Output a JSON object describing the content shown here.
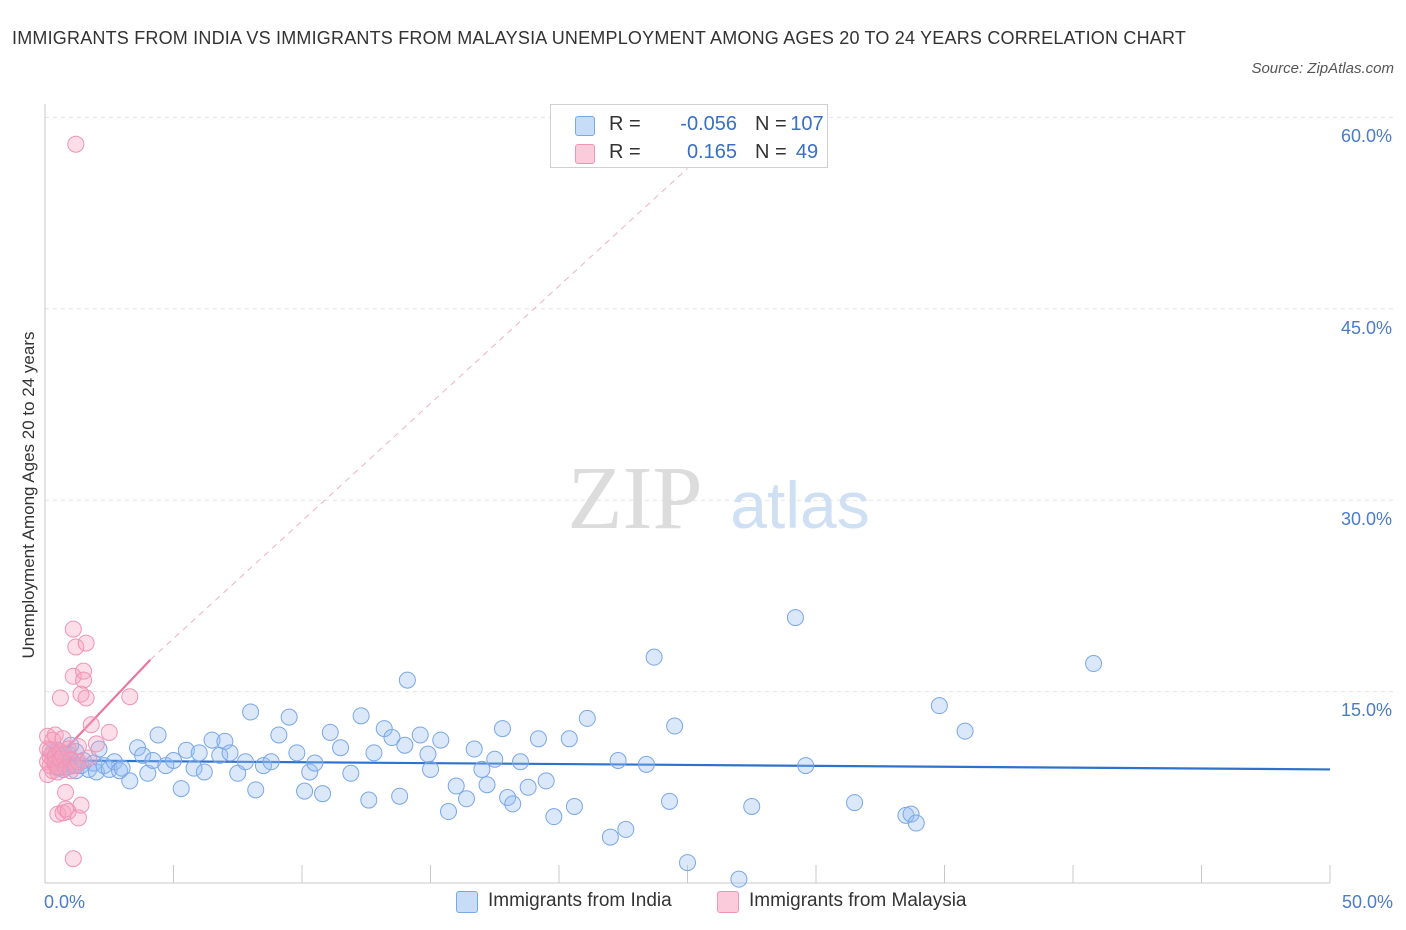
{
  "chart_data": {
    "type": "scatter",
    "title": "IMMIGRANTS FROM INDIA VS IMMIGRANTS FROM MALAYSIA UNEMPLOYMENT AMONG AGES 20 TO 24 YEARS CORRELATION CHART",
    "source": "Source: ZipAtlas.com",
    "ylabel": "Unemployment Among Ages 20 to 24 years",
    "xlabel": "",
    "xlim": [
      0,
      50
    ],
    "ylim": [
      0,
      60
    ],
    "x_tick_labels": [
      "0.0%",
      "50.0%"
    ],
    "y_tick_labels": [
      "15.0%",
      "30.0%",
      "45.0%",
      "60.0%"
    ],
    "y_ticks": [
      15,
      30,
      45,
      60
    ],
    "watermark": {
      "zip": "ZIP",
      "atlas": "atlas"
    },
    "legend": {
      "r_label": "R =",
      "n_label": "N =",
      "rows": [
        {
          "r": "-0.056",
          "n": "107"
        },
        {
          "r": "0.165",
          "n": "49"
        }
      ]
    },
    "series": [
      {
        "name": "Immigrants from India",
        "color": "#7aa7e8",
        "fill": "rgba(150,190,240,0.35)",
        "line_color": "#2f72cc",
        "trend": {
          "x0": 0.3,
          "y0": 9.6,
          "x1": 50,
          "y1": 8.9
        },
        "points": [
          [
            0.3,
            10.2
          ],
          [
            0.4,
            9.8
          ],
          [
            0.5,
            10.4
          ],
          [
            0.6,
            9.5
          ],
          [
            0.7,
            10.0
          ],
          [
            0.8,
            9.3
          ],
          [
            0.9,
            10.1
          ],
          [
            1.0,
            9.7
          ],
          [
            1.1,
            9.2
          ],
          [
            1.2,
            10.3
          ],
          [
            0.5,
            9.0
          ],
          [
            0.7,
            8.9
          ],
          [
            0.9,
            9.1
          ],
          [
            1.0,
            10.8
          ],
          [
            1.2,
            8.8
          ],
          [
            1.4,
            9.2
          ],
          [
            1.5,
            9.6
          ],
          [
            1.7,
            8.9
          ],
          [
            1.9,
            9.4
          ],
          [
            2.0,
            8.7
          ],
          [
            2.1,
            10.5
          ],
          [
            2.3,
            9.2
          ],
          [
            2.5,
            8.9
          ],
          [
            2.7,
            9.5
          ],
          [
            2.9,
            8.8
          ],
          [
            3.0,
            9.0
          ],
          [
            3.3,
            8.0
          ],
          [
            3.6,
            10.6
          ],
          [
            3.8,
            10.0
          ],
          [
            4.0,
            8.6
          ],
          [
            4.2,
            9.6
          ],
          [
            4.4,
            11.6
          ],
          [
            4.7,
            9.2
          ],
          [
            5.0,
            9.6
          ],
          [
            5.3,
            7.4
          ],
          [
            5.5,
            10.4
          ],
          [
            5.8,
            9.0
          ],
          [
            6.0,
            10.2
          ],
          [
            6.2,
            8.7
          ],
          [
            6.5,
            11.2
          ],
          [
            6.8,
            10.0
          ],
          [
            7.0,
            11.1
          ],
          [
            7.2,
            10.2
          ],
          [
            7.5,
            8.6
          ],
          [
            7.8,
            9.5
          ],
          [
            8.0,
            13.4
          ],
          [
            8.2,
            7.3
          ],
          [
            8.5,
            9.2
          ],
          [
            8.8,
            9.5
          ],
          [
            9.1,
            11.6
          ],
          [
            9.5,
            13.0
          ],
          [
            9.8,
            10.2
          ],
          [
            10.1,
            7.2
          ],
          [
            10.3,
            8.7
          ],
          [
            10.5,
            9.4
          ],
          [
            10.8,
            7.0
          ],
          [
            11.1,
            11.8
          ],
          [
            11.5,
            10.6
          ],
          [
            11.9,
            8.6
          ],
          [
            12.3,
            13.1
          ],
          [
            12.6,
            6.5
          ],
          [
            12.8,
            10.2
          ],
          [
            13.2,
            12.1
          ],
          [
            13.5,
            11.4
          ],
          [
            13.8,
            6.8
          ],
          [
            14.0,
            10.8
          ],
          [
            14.1,
            15.9
          ],
          [
            14.6,
            11.6
          ],
          [
            14.9,
            10.1
          ],
          [
            15.0,
            8.9
          ],
          [
            15.4,
            11.2
          ],
          [
            15.7,
            5.6
          ],
          [
            16.0,
            7.6
          ],
          [
            16.4,
            6.6
          ],
          [
            16.7,
            10.5
          ],
          [
            17.0,
            8.9
          ],
          [
            17.2,
            7.7
          ],
          [
            17.5,
            9.7
          ],
          [
            17.8,
            12.1
          ],
          [
            18.0,
            6.7
          ],
          [
            18.2,
            6.2
          ],
          [
            18.5,
            9.5
          ],
          [
            18.8,
            7.5
          ],
          [
            19.2,
            11.3
          ],
          [
            19.5,
            8.0
          ],
          [
            19.8,
            5.2
          ],
          [
            20.4,
            11.3
          ],
          [
            20.6,
            6.0
          ],
          [
            21.1,
            12.9
          ],
          [
            22.0,
            3.6
          ],
          [
            22.3,
            9.6
          ],
          [
            22.6,
            4.2
          ],
          [
            23.4,
            9.3
          ],
          [
            23.7,
            17.7
          ],
          [
            24.3,
            6.4
          ],
          [
            24.5,
            12.3
          ],
          [
            25.0,
            1.6
          ],
          [
            27.0,
            0.3
          ],
          [
            27.5,
            6.0
          ],
          [
            29.2,
            20.8
          ],
          [
            29.6,
            9.2
          ],
          [
            31.5,
            6.3
          ],
          [
            33.5,
            5.3
          ],
          [
            33.7,
            5.4
          ],
          [
            33.9,
            4.7
          ],
          [
            34.8,
            13.9
          ],
          [
            35.8,
            11.9
          ],
          [
            40.8,
            17.2
          ]
        ]
      },
      {
        "name": "Immigrants from Malaysia",
        "color": "#f094b4",
        "fill": "rgba(245,160,190,0.35)",
        "line_color": "#e8779c",
        "trend": {
          "x0": 0.1,
          "y0": 9.0,
          "x1": 4.1,
          "y1": 17.5
        },
        "trend_ext": {
          "x0": 4.1,
          "y0": 17.5,
          "x1": 25.0,
          "y1": 56.0
        },
        "points": [
          [
            0.1,
            11.5
          ],
          [
            0.1,
            10.5
          ],
          [
            0.1,
            9.5
          ],
          [
            0.1,
            8.5
          ],
          [
            0.2,
            9.9
          ],
          [
            0.2,
            9.2
          ],
          [
            0.2,
            10.4
          ],
          [
            0.3,
            8.8
          ],
          [
            0.3,
            11.2
          ],
          [
            0.3,
            9.7
          ],
          [
            0.4,
            10.0
          ],
          [
            0.4,
            9.4
          ],
          [
            0.4,
            11.6
          ],
          [
            0.5,
            8.7
          ],
          [
            0.5,
            9.1
          ],
          [
            0.5,
            5.4
          ],
          [
            0.6,
            14.5
          ],
          [
            0.6,
            10.3
          ],
          [
            0.6,
            9.7
          ],
          [
            0.7,
            5.5
          ],
          [
            0.7,
            11.3
          ],
          [
            0.7,
            10.0
          ],
          [
            0.8,
            9.0
          ],
          [
            0.8,
            5.8
          ],
          [
            0.8,
            7.1
          ],
          [
            0.9,
            5.6
          ],
          [
            0.9,
            10.5
          ],
          [
            1.0,
            9.6
          ],
          [
            1.0,
            8.8
          ],
          [
            1.1,
            19.9
          ],
          [
            1.1,
            16.2
          ],
          [
            1.1,
            1.9
          ],
          [
            1.2,
            18.5
          ],
          [
            1.2,
            9.2
          ],
          [
            1.3,
            5.1
          ],
          [
            1.3,
            10.7
          ],
          [
            1.3,
            9.5
          ],
          [
            1.4,
            6.1
          ],
          [
            1.4,
            14.8
          ],
          [
            1.5,
            16.6
          ],
          [
            1.5,
            15.9
          ],
          [
            1.6,
            18.8
          ],
          [
            1.6,
            14.5
          ],
          [
            1.7,
            9.8
          ],
          [
            1.8,
            12.4
          ],
          [
            2.0,
            10.9
          ],
          [
            2.5,
            11.8
          ],
          [
            3.3,
            14.6
          ],
          [
            1.2,
            57.9
          ]
        ]
      }
    ],
    "bottom_legend": [
      "Immigrants from India",
      "Immigrants from Malaysia"
    ]
  }
}
